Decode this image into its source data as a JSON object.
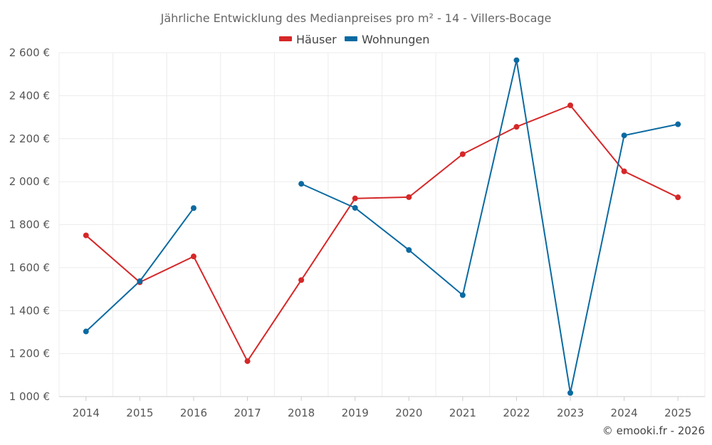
{
  "chart_data": {
    "type": "line",
    "title": "Jährliche Entwicklung des Medianpreises pro m² - 14 - Villers-Bocage",
    "categories": [
      "2014",
      "2015",
      "2016",
      "2017",
      "2018",
      "2019",
      "2020",
      "2021",
      "2022",
      "2023",
      "2024",
      "2025"
    ],
    "ylim": [
      1000,
      2600
    ],
    "yticks": [
      1000,
      1200,
      1400,
      1600,
      1800,
      2000,
      2200,
      2400,
      2600
    ],
    "ytick_labels": [
      "1 000 €",
      "1 200 €",
      "1 400 €",
      "1 600 €",
      "1 800 €",
      "2 000 €",
      "2 200 €",
      "2 400 €",
      "2 600 €"
    ],
    "legend_position": "top-center",
    "grid": true,
    "series": [
      {
        "name": "Häuser",
        "color": "#d62728",
        "values": [
          1750,
          1532,
          1652,
          1165,
          1542,
          1922,
          1928,
          2128,
          2255,
          2355,
          2048,
          1927
        ]
      },
      {
        "name": "Wohnungen",
        "color": "#0a6aa1",
        "values": [
          1303,
          1537,
          1877,
          null,
          1990,
          1878,
          1682,
          1472,
          2565,
          1017,
          2215,
          2267
        ]
      }
    ],
    "credit": "© emooki.fr - 2026"
  }
}
